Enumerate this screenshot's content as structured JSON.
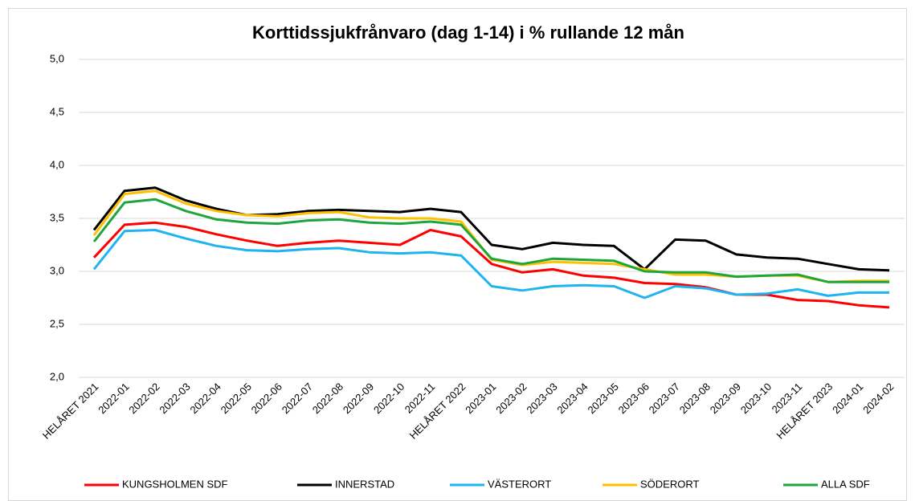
{
  "chart_data": {
    "type": "line",
    "title": "Korttidssjukfrånvaro (dag 1-14) i % rullande 12 mån",
    "categories": [
      "HELÅRET 2021",
      "2022-01",
      "2022-02",
      "2022-03",
      "2022-04",
      "2022-05",
      "2022-06",
      "2022-07",
      "2022-08",
      "2022-09",
      "2022-10",
      "2022-11",
      "HELÅRET 2022",
      "2023-01",
      "2023-02",
      "2023-03",
      "2023-04",
      "2023-05",
      "2023-06",
      "2023-07",
      "2023-08",
      "2023-09",
      "2023-10",
      "2023-11",
      "HELÅRET 2023",
      "2024-01",
      "2024-02"
    ],
    "series": [
      {
        "name": "KUNGSHOLMEN SDF",
        "color": "#ff0000",
        "values": [
          3.13,
          3.44,
          3.46,
          3.42,
          3.35,
          3.29,
          3.24,
          3.27,
          3.29,
          3.27,
          3.25,
          3.39,
          3.33,
          3.07,
          2.99,
          3.02,
          2.96,
          2.94,
          2.89,
          2.88,
          2.85,
          2.78,
          2.78,
          2.73,
          2.72,
          2.68,
          2.66
        ]
      },
      {
        "name": "INNERSTAD",
        "color": "#000000",
        "values": [
          3.39,
          3.76,
          3.79,
          3.67,
          3.59,
          3.53,
          3.54,
          3.57,
          3.58,
          3.57,
          3.56,
          3.59,
          3.56,
          3.25,
          3.21,
          3.27,
          3.25,
          3.24,
          3.02,
          3.3,
          3.29,
          3.16,
          3.13,
          3.12,
          3.07,
          3.02,
          3.01
        ]
      },
      {
        "name": "VÄSTERORT",
        "color": "#1eb4f0",
        "values": [
          3.02,
          3.38,
          3.39,
          3.31,
          3.24,
          3.2,
          3.19,
          3.21,
          3.22,
          3.18,
          3.17,
          3.18,
          3.15,
          2.86,
          2.82,
          2.86,
          2.87,
          2.86,
          2.75,
          2.86,
          2.84,
          2.78,
          2.79,
          2.83,
          2.77,
          2.8,
          2.8
        ]
      },
      {
        "name": "SÖDERORT",
        "color": "#ffc000",
        "values": [
          3.34,
          3.73,
          3.76,
          3.64,
          3.57,
          3.53,
          3.52,
          3.55,
          3.56,
          3.51,
          3.5,
          3.5,
          3.47,
          3.11,
          3.06,
          3.09,
          3.08,
          3.07,
          3.02,
          2.97,
          2.97,
          2.95,
          2.96,
          2.96,
          2.9,
          2.91,
          2.91
        ]
      },
      {
        "name": "ALLA SDF",
        "color": "#1ea53c",
        "values": [
          3.28,
          3.65,
          3.68,
          3.57,
          3.49,
          3.46,
          3.45,
          3.48,
          3.49,
          3.46,
          3.45,
          3.47,
          3.44,
          3.12,
          3.07,
          3.12,
          3.11,
          3.1,
          3.0,
          2.99,
          2.99,
          2.95,
          2.96,
          2.97,
          2.9,
          2.9,
          2.9
        ]
      }
    ],
    "ylim": [
      2,
      5
    ],
    "yticks": [
      {
        "value": 2,
        "label": "2,0"
      },
      {
        "value": 2.5,
        "label": "2,5"
      },
      {
        "value": 3,
        "label": "3,0"
      },
      {
        "value": 3.5,
        "label": "3,5"
      },
      {
        "value": 4,
        "label": "4,0"
      },
      {
        "value": 4.5,
        "label": "4,5"
      },
      {
        "value": 5,
        "label": "5,0"
      }
    ],
    "grid": true,
    "legend": "bottom"
  }
}
